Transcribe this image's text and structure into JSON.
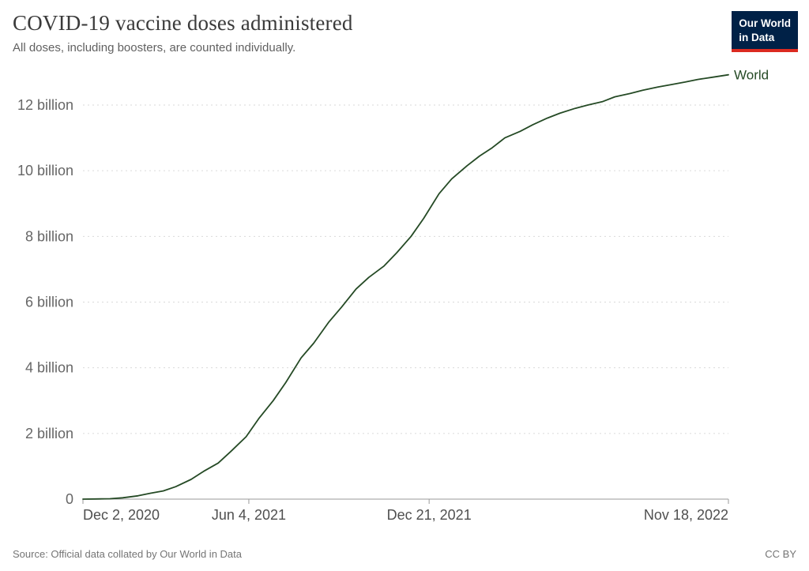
{
  "header": {
    "title": "COVID-19 vaccine doses administered",
    "subtitle": "All doses, including boosters, are counted individually.",
    "logo": {
      "line1": "Our World",
      "line2": "in Data",
      "bg_color": "#002147",
      "accent_color": "#dc2a20"
    }
  },
  "footer": {
    "source": "Source: Official data collated by Our World in Data",
    "license": "CC BY"
  },
  "chart_data": {
    "type": "line",
    "title": "COVID-19 vaccine doses administered",
    "xlabel": "",
    "ylabel": "",
    "unit": "doses (billions)",
    "grid": true,
    "legend_position": "end-of-line",
    "ylim": [
      0,
      13
    ],
    "x_range": [
      "2020-12-02",
      "2022-11-18"
    ],
    "y_ticks": [
      {
        "value": 0,
        "label": "0"
      },
      {
        "value": 2,
        "label": "2 billion"
      },
      {
        "value": 4,
        "label": "4 billion"
      },
      {
        "value": 6,
        "label": "6 billion"
      },
      {
        "value": 8,
        "label": "8 billion"
      },
      {
        "value": 10,
        "label": "10 billion"
      },
      {
        "value": 12,
        "label": "12 billion"
      }
    ],
    "x_ticks": [
      {
        "date": "2020-12-02",
        "label": "Dec 2, 2020"
      },
      {
        "date": "2021-06-04",
        "label": "Jun 4, 2021"
      },
      {
        "date": "2021-12-21",
        "label": "Dec 21, 2021"
      },
      {
        "date": "2022-11-18",
        "label": "Nov 18, 2022"
      }
    ],
    "series": [
      {
        "name": "World",
        "color": "#254a25",
        "points": [
          {
            "d": "2020-12-02",
            "v": 0
          },
          {
            "d": "2020-12-16",
            "v": 0.004
          },
          {
            "d": "2021-01-01",
            "v": 0.012
          },
          {
            "d": "2021-01-15",
            "v": 0.04
          },
          {
            "d": "2021-02-01",
            "v": 0.1
          },
          {
            "d": "2021-02-15",
            "v": 0.18
          },
          {
            "d": "2021-03-01",
            "v": 0.25
          },
          {
            "d": "2021-03-15",
            "v": 0.38
          },
          {
            "d": "2021-04-01",
            "v": 0.6
          },
          {
            "d": "2021-04-15",
            "v": 0.85
          },
          {
            "d": "2021-05-01",
            "v": 1.1
          },
          {
            "d": "2021-05-15",
            "v": 1.45
          },
          {
            "d": "2021-06-01",
            "v": 1.9
          },
          {
            "d": "2021-06-15",
            "v": 2.45
          },
          {
            "d": "2021-07-01",
            "v": 3.0
          },
          {
            "d": "2021-07-15",
            "v": 3.55
          },
          {
            "d": "2021-08-01",
            "v": 4.3
          },
          {
            "d": "2021-08-15",
            "v": 4.75
          },
          {
            "d": "2021-09-01",
            "v": 5.4
          },
          {
            "d": "2021-09-15",
            "v": 5.85
          },
          {
            "d": "2021-10-01",
            "v": 6.4
          },
          {
            "d": "2021-10-15",
            "v": 6.75
          },
          {
            "d": "2021-11-01",
            "v": 7.1
          },
          {
            "d": "2021-11-15",
            "v": 7.5
          },
          {
            "d": "2021-12-01",
            "v": 8.0
          },
          {
            "d": "2021-12-15",
            "v": 8.55
          },
          {
            "d": "2022-01-01",
            "v": 9.3
          },
          {
            "d": "2022-01-15",
            "v": 9.75
          },
          {
            "d": "2022-02-01",
            "v": 10.15
          },
          {
            "d": "2022-02-15",
            "v": 10.45
          },
          {
            "d": "2022-03-01",
            "v": 10.7
          },
          {
            "d": "2022-03-15",
            "v": 11.0
          },
          {
            "d": "2022-04-01",
            "v": 11.2
          },
          {
            "d": "2022-04-15",
            "v": 11.4
          },
          {
            "d": "2022-05-01",
            "v": 11.6
          },
          {
            "d": "2022-05-15",
            "v": 11.75
          },
          {
            "d": "2022-06-01",
            "v": 11.9
          },
          {
            "d": "2022-06-15",
            "v": 12.0
          },
          {
            "d": "2022-07-01",
            "v": 12.1
          },
          {
            "d": "2022-07-15",
            "v": 12.25
          },
          {
            "d": "2022-08-01",
            "v": 12.35
          },
          {
            "d": "2022-08-15",
            "v": 12.45
          },
          {
            "d": "2022-09-01",
            "v": 12.55
          },
          {
            "d": "2022-09-15",
            "v": 12.62
          },
          {
            "d": "2022-10-01",
            "v": 12.7
          },
          {
            "d": "2022-10-15",
            "v": 12.78
          },
          {
            "d": "2022-11-01",
            "v": 12.85
          },
          {
            "d": "2022-11-18",
            "v": 12.92
          }
        ]
      }
    ]
  }
}
